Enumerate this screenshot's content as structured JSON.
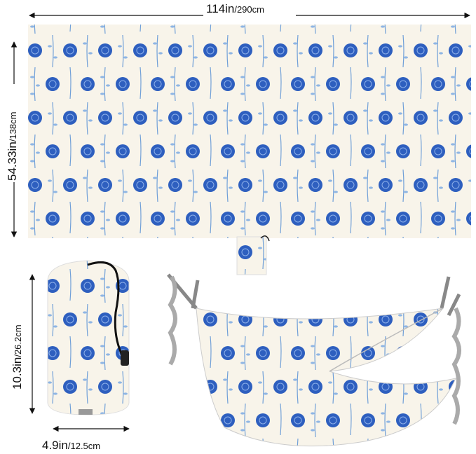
{
  "dimensions": {
    "mat_length": {
      "imperial": "114in",
      "metric": "/290cm"
    },
    "mat_width": {
      "imperial": "54.33in",
      "metric": "/138cm"
    },
    "bag_height": {
      "imperial": "10.3in",
      "metric": "/26.2cm"
    },
    "bag_diameter": {
      "imperial": "4.9in",
      "metric": "/12.5cm"
    }
  }
}
